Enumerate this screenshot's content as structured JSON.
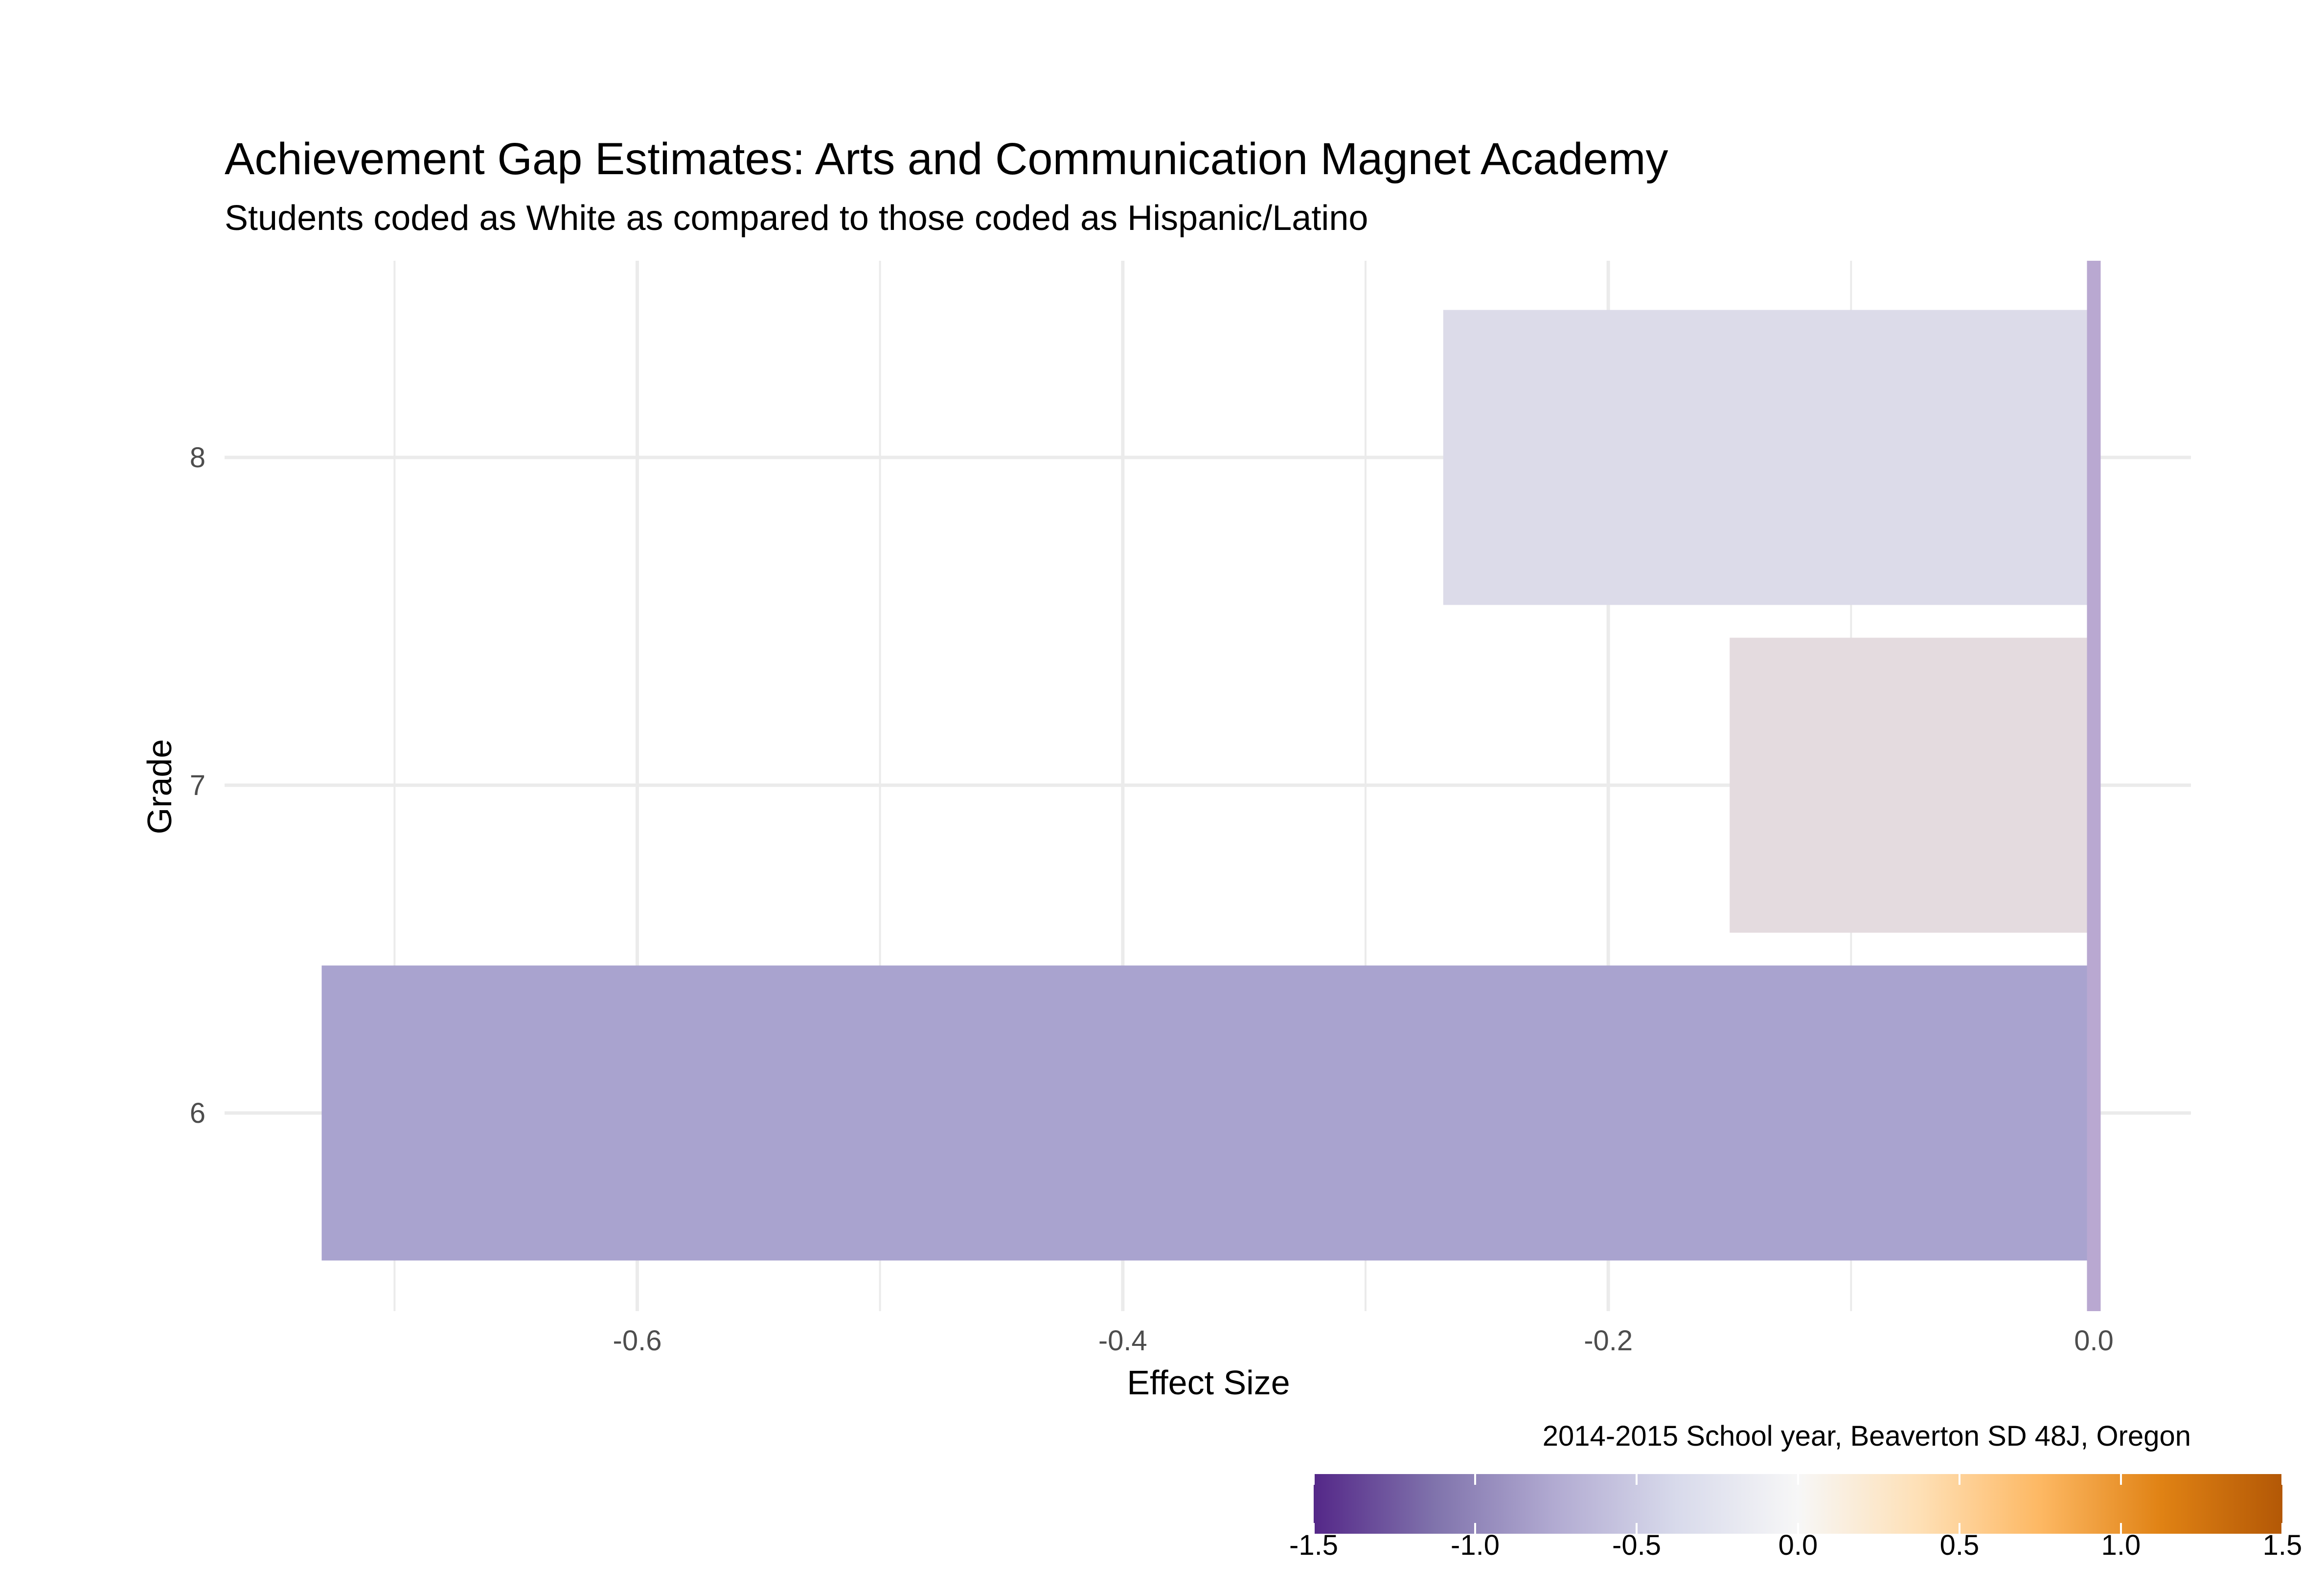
{
  "chart_data": {
    "type": "bar",
    "orientation": "horizontal",
    "title": "Achievement Gap Estimates: Arts and Communication Magnet Academy",
    "subtitle": "Students coded as White as compared to those coded as Hispanic/Latino",
    "xlabel": "Effect Size",
    "ylabel": "Grade",
    "caption": "2014-2015 School year, Beaverton SD 48J, Oregon",
    "categories": [
      "6",
      "7",
      "8"
    ],
    "values": [
      -0.73,
      -0.15,
      -0.268
    ],
    "xlim": [
      -0.77,
      0.04
    ],
    "x_ticks": [
      -0.6,
      -0.4,
      -0.2,
      0.0
    ],
    "x_tick_labels": [
      "-0.6",
      "-0.4",
      "-0.2",
      "0.0"
    ],
    "reference_line": 0.0,
    "grid": true,
    "legend": {
      "position": "bottom-right",
      "type": "colorbar",
      "range": [
        -1.5,
        1.5
      ],
      "ticks": [
        -1.5,
        -1.0,
        -0.5,
        0.0,
        0.5,
        1.0,
        1.5
      ],
      "tick_labels": [
        "-1.5",
        "-1.0",
        "-0.5",
        "0.0",
        "0.5",
        "1.0",
        "1.5"
      ],
      "palette": [
        "#542788",
        "#8073AC",
        "#B2ABD2",
        "#D8DAEB",
        "#F7F7F7",
        "#FEE0B6",
        "#FDB863",
        "#E08214",
        "#B35806"
      ]
    },
    "bar_colors": [
      "#A9A3CF",
      "#E4DBDF",
      "#DCDBE9"
    ],
    "reference_line_color": "#B9A8D1"
  }
}
